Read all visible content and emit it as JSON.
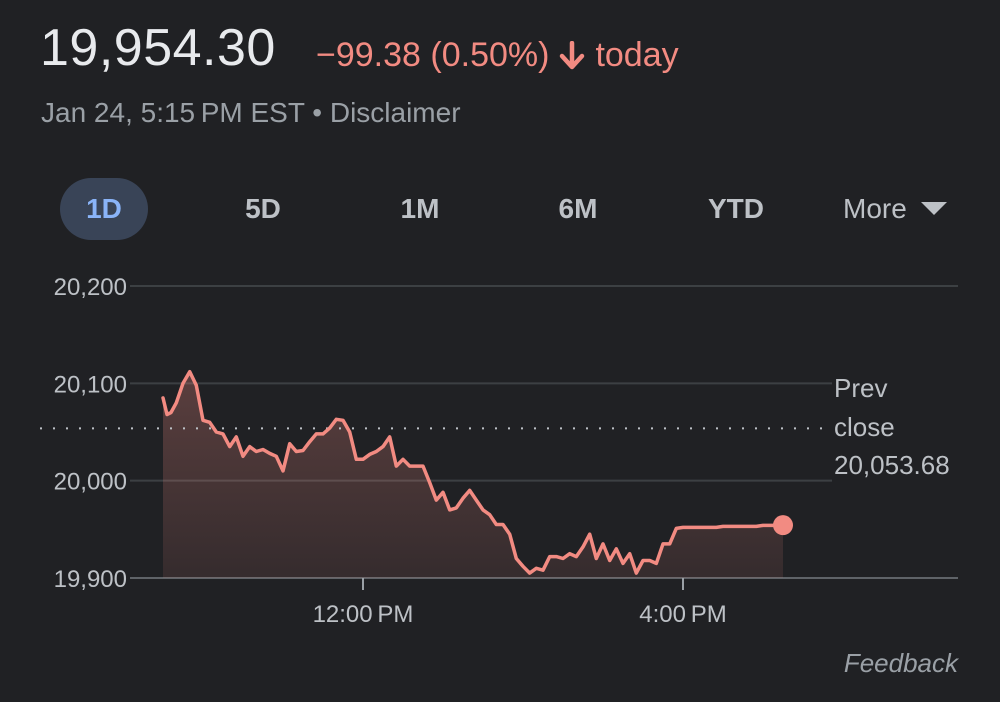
{
  "quote": {
    "price": "19,954.30",
    "change": "−99.38 (0.50%)",
    "direction_icon": "arrow-down-icon",
    "period": "today",
    "timestamp": "Jan 24, 5:15 PM EST",
    "separator": "•",
    "disclaimer": "Disclaimer"
  },
  "ranges": {
    "items": [
      "1D",
      "5D",
      "1M",
      "6M",
      "YTD"
    ],
    "selected": "1D",
    "more_label": "More",
    "more_icon": "triangle-down-icon"
  },
  "colors": {
    "background": "#202124",
    "down": "#f28b82",
    "selected_tab": "#8ab4f8"
  },
  "chart_data": {
    "type": "area",
    "y_ticks": [
      19900,
      20000,
      20100,
      20200
    ],
    "y_tick_labels": [
      "19,900",
      "20,000",
      "20,100",
      "20,200"
    ],
    "ylim": [
      19900,
      20200
    ],
    "x_tick_labels": [
      "12:00 PM",
      "4:00 PM"
    ],
    "prev_close": {
      "label_line1": "Prev",
      "label_line2": "close",
      "value_label": "20,053.68",
      "value": 20053.68
    },
    "last_value": 19954.3,
    "series": [
      {
        "times": [
          "09:30",
          "09:33",
          "09:36",
          "09:40",
          "09:45",
          "09:50",
          "09:55",
          "10:00",
          "10:05",
          "10:10",
          "10:15",
          "10:20",
          "10:25",
          "10:30",
          "10:35",
          "10:40",
          "10:45",
          "10:50",
          "10:55",
          "11:00",
          "11:05",
          "11:10",
          "11:15",
          "11:20",
          "11:25",
          "11:30",
          "11:35",
          "11:40",
          "11:45",
          "11:50",
          "11:55",
          "12:00",
          "12:05",
          "12:10",
          "12:15",
          "12:20",
          "12:25",
          "12:30",
          "12:35",
          "12:40",
          "12:45",
          "12:50",
          "12:55",
          "13:00",
          "13:05",
          "13:10",
          "13:15",
          "13:20",
          "13:25",
          "13:30",
          "13:35",
          "13:40",
          "13:45",
          "13:50",
          "13:55",
          "14:00",
          "14:05",
          "14:10",
          "14:15",
          "14:20",
          "14:25",
          "14:30",
          "14:35",
          "14:40",
          "14:45",
          "14:50",
          "14:55",
          "15:00",
          "15:05",
          "15:10",
          "15:15",
          "15:20",
          "15:25",
          "15:30",
          "15:35",
          "15:40",
          "15:45",
          "15:50",
          "15:55",
          "16:00",
          "16:05",
          "16:10",
          "16:15",
          "16:20",
          "16:25",
          "16:30",
          "16:35",
          "16:40",
          "16:45",
          "16:50",
          "16:55",
          "17:00",
          "17:05",
          "17:10",
          "17:15"
        ],
        "values": [
          20085,
          20068,
          20070,
          20080,
          20100,
          20112,
          20098,
          20062,
          20060,
          20050,
          20048,
          20035,
          20045,
          20025,
          20035,
          20030,
          20032,
          20028,
          20025,
          20010,
          20038,
          20030,
          20031,
          20040,
          20048,
          20048,
          20054,
          20063,
          20062,
          20050,
          20022,
          20022,
          20027,
          20030,
          20035,
          20045,
          20015,
          20022,
          20015,
          20015,
          20015,
          19998,
          19980,
          19988,
          19970,
          19972,
          19982,
          19990,
          19980,
          19970,
          19965,
          19955,
          19955,
          19945,
          19920,
          19912,
          19905,
          19910,
          19908,
          19922,
          19922,
          19920,
          19925,
          19922,
          19932,
          19945,
          19920,
          19935,
          19918,
          19930,
          19915,
          19925,
          19905,
          19918,
          19918,
          19915,
          19935,
          19935,
          19951,
          19952,
          19952,
          19952,
          19952,
          19952,
          19952,
          19953,
          19953,
          19953,
          19953,
          19953,
          19953,
          19954,
          19954,
          19954,
          19954.3
        ]
      }
    ]
  },
  "feedback_label": "Feedback"
}
